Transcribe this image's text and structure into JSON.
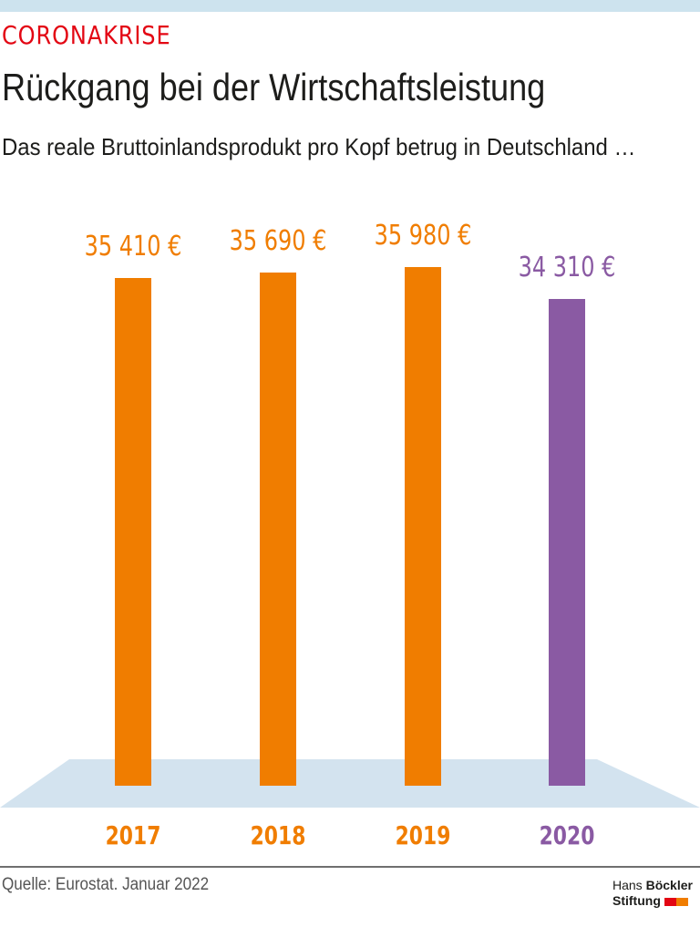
{
  "header": {
    "kicker": "CORONAKRISE",
    "title": "Rückgang bei der Wirtschaftsleistung",
    "subtitle": "Das reale Bruttoinlandsprodukt pro Kopf betrug in Deutschland …"
  },
  "colors": {
    "accent_red": "#e30613",
    "bar_orange": "#f07d00",
    "bar_purple": "#8a5aa3",
    "floor": "#d3e3ef",
    "top_bar": "#cde3ee"
  },
  "bars": [
    {
      "year": "2017",
      "label": "35 410 €",
      "value": 35410,
      "color": "#f07d00"
    },
    {
      "year": "2018",
      "label": "35 690 €",
      "value": 35690,
      "color": "#f07d00"
    },
    {
      "year": "2019",
      "label": "35 980 €",
      "value": 35980,
      "color": "#f07d00"
    },
    {
      "year": "2020",
      "label": "34 310 €",
      "value": 34310,
      "color": "#8a5aa3"
    }
  ],
  "footer": {
    "source": "Quelle: Eurostat. Januar 2022",
    "logo_line1_light": "Hans",
    "logo_line1_bold": "Böckler",
    "logo_line2": "Stiftung"
  },
  "chart_data": {
    "type": "bar",
    "title": "Rückgang bei der Wirtschaftsleistung",
    "subtitle": "Das reale Bruttoinlandsprodukt pro Kopf betrug in Deutschland …",
    "categories": [
      "2017",
      "2018",
      "2019",
      "2020"
    ],
    "values": [
      35410,
      35690,
      35980,
      34310
    ],
    "data_labels": [
      "35 410 €",
      "35 690 €",
      "35 980 €",
      "34 310 €"
    ],
    "xlabel": "",
    "ylabel": "",
    "unit": "€",
    "grid": false,
    "legend": null,
    "highlight": {
      "category": "2020",
      "color": "#8a5aa3"
    },
    "source": "Quelle: Eurostat. Januar 2022"
  }
}
